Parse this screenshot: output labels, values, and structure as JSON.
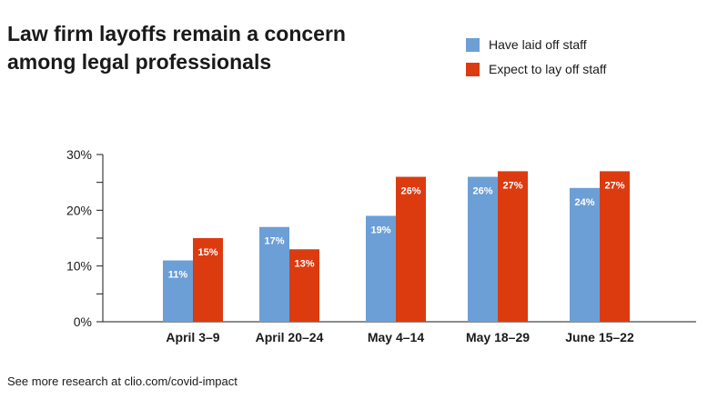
{
  "chart_data": {
    "type": "bar",
    "title": "Law firm layoffs remain a concern among legal professionals",
    "categories": [
      "April 3–9",
      "April 20–24",
      "May 4–14",
      "May 18–29",
      "June 15–22"
    ],
    "series": [
      {
        "name": "Have laid off staff",
        "values": [
          11,
          17,
          19,
          26,
          24
        ],
        "color": "#6c9fd6"
      },
      {
        "name": "Expect to lay off staff",
        "values": [
          15,
          13,
          26,
          27,
          27
        ],
        "color": "#dc3b10"
      }
    ],
    "value_labels": [
      [
        "11%",
        "17%",
        "19%",
        "26%",
        "24%"
      ],
      [
        "15%",
        "13%",
        "26%",
        "27%",
        "27%"
      ]
    ],
    "yticks": [
      "0%",
      "10%",
      "20%",
      "30%"
    ],
    "ytick_values": [
      0,
      10,
      20,
      30
    ],
    "ylim": [
      0,
      30
    ],
    "xlabel": "",
    "ylabel": "",
    "legend_position": "top-right",
    "grid": false
  },
  "footer": {
    "source": "See more research at clio.com/covid-impact"
  }
}
